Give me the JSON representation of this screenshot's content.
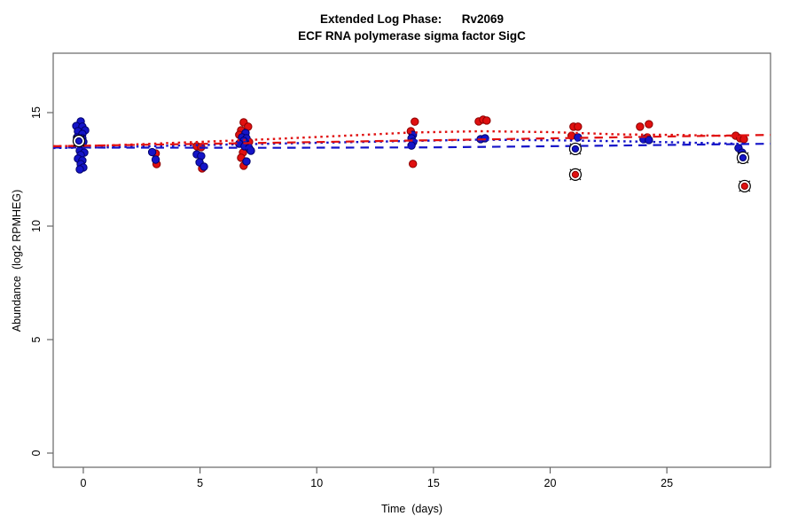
{
  "title": "Extended Log Phase:      Rv2069",
  "subtitle": "ECF RNA polymerase sigma factor SigC",
  "chart_data": {
    "type": "scatter",
    "title": "Extended Log Phase:      Rv2069",
    "subtitle": "ECF RNA polymerase sigma factor SigC",
    "xlabel": "Time  (days)",
    "ylabel": "Abundance  (log2 RPMHEG)",
    "xlim": [
      -1.29,
      29.44
    ],
    "ylim": [
      -0.625,
      17.617
    ],
    "x_ticks": [
      0,
      5,
      10,
      15,
      20,
      25
    ],
    "y_ticks": [
      0,
      5,
      10,
      15
    ],
    "grid": false,
    "legend": "none",
    "colors": {
      "red": "#e01010",
      "red_edge": "#8b0000",
      "blue": "#1414c8",
      "blue_edge": "#00006b",
      "outlier_ring": "#000000",
      "box": "#666666",
      "tick_text": "#000000"
    },
    "series": [
      {
        "name": "red-series",
        "color_key": "red",
        "points": [
          {
            "x": 3.1,
            "y": 13.2
          },
          {
            "x": 3.14,
            "y": 12.73
          },
          {
            "x": 4.86,
            "y": 13.52
          },
          {
            "x": 5.05,
            "y": 13.48
          },
          {
            "x": 5.09,
            "y": 12.54
          },
          {
            "x": 6.87,
            "y": 14.57
          },
          {
            "x": 7.06,
            "y": 14.38
          },
          {
            "x": 6.76,
            "y": 14.22
          },
          {
            "x": 6.68,
            "y": 14.02
          },
          {
            "x": 7.1,
            "y": 13.71
          },
          {
            "x": 6.84,
            "y": 13.24
          },
          {
            "x": 6.76,
            "y": 13.01
          },
          {
            "x": 6.87,
            "y": 12.66
          },
          {
            "x": 14.2,
            "y": 14.6
          },
          {
            "x": 14.03,
            "y": 14.18
          },
          {
            "x": 14.12,
            "y": 12.74
          },
          {
            "x": 16.94,
            "y": 14.61
          },
          {
            "x": 17.13,
            "y": 14.69
          },
          {
            "x": 17.28,
            "y": 14.65
          },
          {
            "x": 21.0,
            "y": 14.38
          },
          {
            "x": 21.19,
            "y": 14.38
          },
          {
            "x": 20.92,
            "y": 13.98
          },
          {
            "x": 23.85,
            "y": 14.38
          },
          {
            "x": 24.23,
            "y": 14.49
          },
          {
            "x": 24.16,
            "y": 13.91
          },
          {
            "x": 27.95,
            "y": 13.98
          },
          {
            "x": 28.14,
            "y": 13.87
          },
          {
            "x": 28.3,
            "y": 13.83
          },
          {
            "x": 21.08,
            "y": 12.27,
            "outlier": true
          },
          {
            "x": 28.33,
            "y": 11.76,
            "outlier": true
          }
        ]
      },
      {
        "name": "blue-series",
        "color_key": "blue",
        "points": [
          {
            "x": -0.11,
            "y": 14.61
          },
          {
            "x": -0.3,
            "y": 14.41
          },
          {
            "x": -0.04,
            "y": 14.38
          },
          {
            "x": 0.08,
            "y": 14.22
          },
          {
            "x": -0.23,
            "y": 14.18
          },
          {
            "x": -0.04,
            "y": 14.06
          },
          {
            "x": -0.27,
            "y": 13.91
          },
          {
            "x": -0.04,
            "y": 13.87
          },
          {
            "x": 0.0,
            "y": 13.71
          },
          {
            "x": -0.11,
            "y": 13.55
          },
          {
            "x": -0.15,
            "y": 13.32
          },
          {
            "x": 0.04,
            "y": 13.24
          },
          {
            "x": -0.11,
            "y": 13.13
          },
          {
            "x": -0.23,
            "y": 12.97
          },
          {
            "x": -0.04,
            "y": 12.89
          },
          {
            "x": -0.11,
            "y": 12.73
          },
          {
            "x": 0.0,
            "y": 12.58
          },
          {
            "x": -0.15,
            "y": 12.5
          },
          {
            "x": -0.19,
            "y": 13.75,
            "outlier": true
          },
          {
            "x": 2.95,
            "y": 13.26
          },
          {
            "x": 3.1,
            "y": 12.93
          },
          {
            "x": 4.86,
            "y": 13.16
          },
          {
            "x": 5.05,
            "y": 13.09
          },
          {
            "x": 4.98,
            "y": 12.81
          },
          {
            "x": 5.17,
            "y": 12.62
          },
          {
            "x": 6.95,
            "y": 14.1
          },
          {
            "x": 6.8,
            "y": 13.91
          },
          {
            "x": 6.99,
            "y": 13.87
          },
          {
            "x": 6.87,
            "y": 13.75
          },
          {
            "x": 6.68,
            "y": 13.63
          },
          {
            "x": 6.91,
            "y": 13.52
          },
          {
            "x": 7.1,
            "y": 13.44
          },
          {
            "x": 7.18,
            "y": 13.32
          },
          {
            "x": 6.99,
            "y": 12.85
          },
          {
            "x": 14.12,
            "y": 14.02
          },
          {
            "x": 14.06,
            "y": 13.87
          },
          {
            "x": 14.13,
            "y": 13.71
          },
          {
            "x": 14.06,
            "y": 13.55
          },
          {
            "x": 17.02,
            "y": 13.83
          },
          {
            "x": 17.21,
            "y": 13.87
          },
          {
            "x": 21.19,
            "y": 13.91
          },
          {
            "x": 21.08,
            "y": 13.4,
            "outlier": true
          },
          {
            "x": 24.0,
            "y": 13.83
          },
          {
            "x": 24.23,
            "y": 13.79
          },
          {
            "x": 28.07,
            "y": 13.44
          },
          {
            "x": 28.22,
            "y": 13.24
          },
          {
            "x": 28.26,
            "y": 13.01,
            "outlier": true
          }
        ]
      }
    ],
    "trend_lines": [
      {
        "name": "blue-dashed-linear-fit",
        "color_key": "blue",
        "style": "dashed",
        "points": [
          [
            -1.29,
            13.46
          ],
          [
            8.0,
            13.45
          ],
          [
            15.0,
            13.47
          ],
          [
            22.0,
            13.54
          ],
          [
            29.44,
            13.63
          ]
        ]
      },
      {
        "name": "blue-dotted-smooth-fit",
        "color_key": "blue",
        "style": "dotted",
        "points": [
          [
            -1.29,
            13.44
          ],
          [
            1.0,
            13.47
          ],
          [
            4.0,
            13.55
          ],
          [
            8.0,
            13.63
          ],
          [
            14.0,
            13.75
          ],
          [
            17.0,
            13.81
          ],
          [
            20.0,
            13.78
          ],
          [
            23.0,
            13.74
          ],
          [
            25.3,
            13.69
          ],
          [
            28.3,
            13.62
          ]
        ]
      },
      {
        "name": "red-dashed-linear-fit",
        "color_key": "red",
        "style": "dashed",
        "points": [
          [
            -1.29,
            13.52
          ],
          [
            29.44,
            14.02
          ]
        ]
      },
      {
        "name": "red-dotted-smooth-fit",
        "color_key": "red",
        "style": "dotted",
        "points": [
          [
            -1.29,
            13.52
          ],
          [
            1.0,
            13.55
          ],
          [
            4.0,
            13.67
          ],
          [
            8.0,
            13.83
          ],
          [
            11.6,
            14.0
          ],
          [
            14.0,
            14.12
          ],
          [
            17.0,
            14.18
          ],
          [
            20.0,
            14.14
          ],
          [
            23.0,
            14.04
          ],
          [
            25.3,
            14.02
          ],
          [
            28.3,
            13.96
          ]
        ]
      }
    ]
  }
}
